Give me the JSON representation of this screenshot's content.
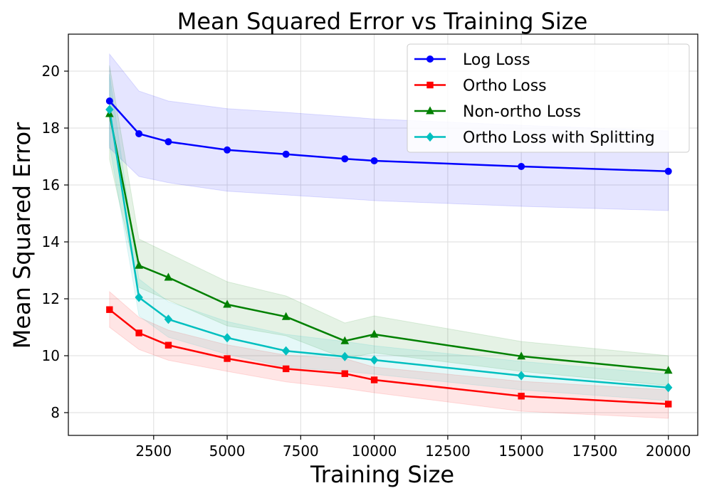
{
  "chart_data": {
    "type": "line",
    "title": "Mean Squared Error vs Training Size",
    "xlabel": "Training Size",
    "ylabel": "Mean Squared Error",
    "xlim": [
      -400,
      21000
    ],
    "ylim": [
      7.2,
      21.3
    ],
    "x_ticks": [
      2500,
      5000,
      7500,
      10000,
      12500,
      15000,
      17500,
      20000
    ],
    "y_ticks": [
      8,
      10,
      12,
      14,
      16,
      18,
      20
    ],
    "grid": true,
    "legend_position": "top-right",
    "x": [
      1000,
      2000,
      3000,
      5000,
      7000,
      9000,
      10000,
      15000,
      20000
    ],
    "series": [
      {
        "name": "Log Loss",
        "color": "#0000ff",
        "marker": "circle",
        "values": [
          18.95,
          17.8,
          17.52,
          17.23,
          17.08,
          16.92,
          16.85,
          16.65,
          16.48
        ],
        "upper": [
          20.6,
          19.3,
          18.95,
          18.68,
          18.55,
          18.4,
          18.32,
          18.1,
          17.9
        ],
        "lower": [
          17.3,
          16.3,
          16.08,
          15.78,
          15.65,
          15.52,
          15.45,
          15.25,
          15.1
        ]
      },
      {
        "name": "Ortho Loss",
        "color": "#ff0000",
        "marker": "square",
        "values": [
          11.62,
          10.8,
          10.37,
          9.9,
          9.54,
          9.37,
          9.15,
          8.58,
          8.3
        ],
        "upper": [
          12.25,
          11.35,
          10.9,
          10.38,
          10.02,
          9.9,
          9.6,
          9.1,
          8.8
        ],
        "lower": [
          11.0,
          10.22,
          9.84,
          9.45,
          9.08,
          8.85,
          8.7,
          8.05,
          7.8
        ]
      },
      {
        "name": "Non-ortho Loss",
        "color": "#008000",
        "marker": "triangle",
        "values": [
          18.5,
          13.17,
          12.75,
          11.8,
          11.37,
          10.52,
          10.75,
          9.98,
          9.48
        ],
        "upper": [
          20.2,
          14.1,
          13.6,
          12.6,
          12.1,
          11.15,
          11.4,
          10.5,
          10.0
        ],
        "lower": [
          16.9,
          12.4,
          11.95,
          11.05,
          10.7,
          9.9,
          10.1,
          9.45,
          8.95
        ]
      },
      {
        "name": "Ortho Loss with Splitting",
        "color": "#00bfbf",
        "marker": "diamond",
        "values": [
          18.65,
          12.05,
          11.28,
          10.63,
          10.17,
          9.97,
          9.85,
          9.3,
          8.88
        ],
        "upper": [
          19.9,
          12.7,
          11.9,
          11.2,
          10.75,
          10.5,
          10.35,
          9.8,
          9.35
        ],
        "lower": [
          17.4,
          11.4,
          10.65,
          10.05,
          9.6,
          9.45,
          9.35,
          8.8,
          8.42
        ]
      }
    ]
  }
}
